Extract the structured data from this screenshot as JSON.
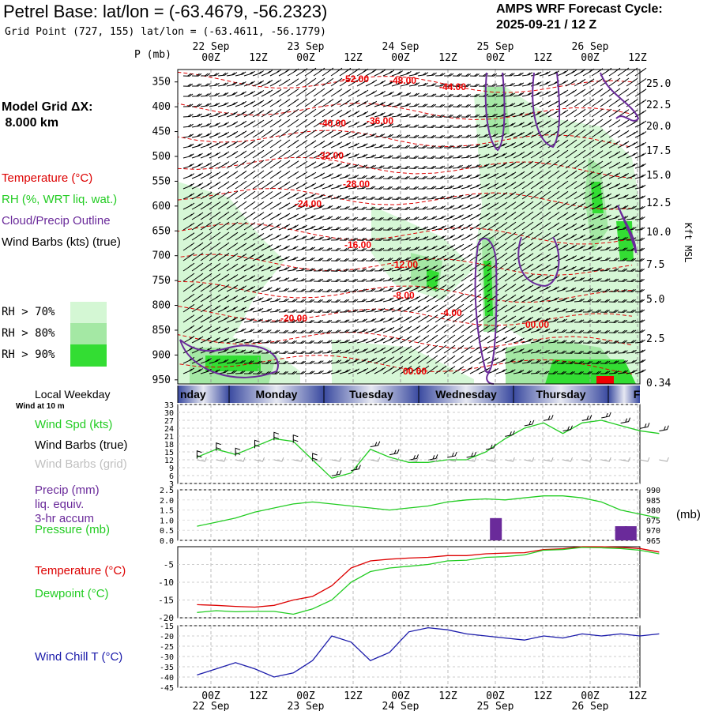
{
  "header": {
    "title": "Petrel Base:  lat/lon = (-63.4679, -56.2323)",
    "grid_point": "Grid Point (727, 155) lat/lon = (-63.4611, -56.1779)",
    "cycle_line1": "AMPS WRF Forecast Cycle:",
    "cycle_line2": "2025-09-21 / 12  Z",
    "model_grid_line1": "Model Grid ΔX:",
    "model_grid_line2": " 8.000 km"
  },
  "legend": {
    "temperature": "Temperature (°C)",
    "rh": "RH (%, WRT liq. wat.)",
    "cloud": "Cloud/Precip Outline",
    "wind_barbs": "Wind Barbs (kts) (true)",
    "rh70": "RH > 70%",
    "rh80": "RH > 80%",
    "rh90": "RH > 90%",
    "rh_colors": [
      "#d4f7d4",
      "#a4e8a4",
      "#33dd33"
    ]
  },
  "colors": {
    "temp": "#dd0000",
    "rh": "#22cc22",
    "cloud": "#6a2a9a",
    "chill": "#1a1aaa",
    "band": "#3a4aa0"
  },
  "time_axis": {
    "hour_labels": [
      "00Z",
      "12Z",
      "00Z",
      "12Z",
      "00Z",
      "12Z",
      "00Z",
      "12Z",
      "00Z",
      "12Z"
    ],
    "date_labels": [
      "22 Sep",
      "23 Sep",
      "24 Sep",
      "25 Sep",
      "26 Sep"
    ]
  },
  "weekdays": [
    "nday",
    "Monday",
    "Tuesday",
    "Wednesday",
    "Thursday",
    "F"
  ],
  "chart_data": [
    {
      "type": "heatmap",
      "title": "Vertical cross-section",
      "ylabel": "P (mb)",
      "ylabel_right": "Kft MSL",
      "pressure_levels": [
        350,
        400,
        450,
        500,
        550,
        600,
        650,
        700,
        750,
        800,
        850,
        900,
        950
      ],
      "height_labels": [
        "25.0",
        "22.5",
        "20.0",
        "17.5",
        "15.0",
        "12.5",
        "10.0",
        "7.5",
        "5.0",
        "2.5",
        "0.34"
      ],
      "temp_contour_labels": [
        "-52.00",
        "-48.00",
        "-44.00",
        "-40.00",
        "-36.00",
        "-32.00",
        "-28.00",
        "-24.00",
        "-20.00",
        "-16.00",
        "-12.00",
        "-8.00",
        "-4.00",
        "00.00",
        "00.00"
      ]
    },
    {
      "type": "line",
      "title": "Wind Spd (kts)",
      "left_title": "Local Weekday",
      "small_title": "Wind at 10 m",
      "labels": {
        "speed": "Wind Spd (kts)",
        "barbs_true": "Wind Barbs (true)",
        "barbs_grid": "Wind Barbs (grid)"
      },
      "y_ticks": [
        "33",
        "30",
        "27",
        "24",
        "21",
        "18",
        "15",
        "12",
        "9",
        "6",
        "3"
      ],
      "ylim": [
        3,
        33
      ],
      "forecast_hour": [
        0,
        6,
        12,
        18,
        24,
        30,
        36,
        42,
        48,
        54,
        60,
        66,
        72,
        78,
        84,
        90,
        96,
        102,
        108,
        114,
        120,
        126,
        132,
        138,
        144
      ],
      "wind_speed": [
        13,
        16,
        14,
        17,
        20,
        19,
        12,
        5,
        7,
        16,
        13,
        11,
        11,
        12,
        12,
        15,
        20,
        24,
        26,
        22,
        26,
        27,
        25,
        23,
        22
      ]
    },
    {
      "type": "bar",
      "labels": {
        "precip": "Precip (mm)",
        "precip2": "liq. equiv.",
        "precip3": "3-hr accum",
        "pressure": "Pressure (mb)",
        "unit": "(mb)"
      },
      "precip_ticks": [
        "2.5",
        "2.0",
        "1.5",
        "1.0",
        "0.5",
        "0.0"
      ],
      "pressure_ticks": [
        "990",
        "985",
        "980",
        "975",
        "970",
        "965"
      ],
      "precip_ylim": [
        0,
        2.5
      ],
      "pressure_ylim": [
        965,
        990
      ],
      "forecast_hour": [
        0,
        6,
        12,
        18,
        24,
        30,
        36,
        42,
        48,
        54,
        60,
        66,
        72,
        78,
        84,
        90,
        96,
        102,
        108,
        114,
        120,
        126,
        132,
        138,
        144
      ],
      "pressure": [
        972,
        974,
        976,
        979,
        981,
        983,
        984,
        983,
        982,
        981,
        980,
        981,
        982,
        984,
        985,
        985.5,
        985,
        986,
        987,
        987,
        986,
        984,
        980,
        978,
        976
      ],
      "precip_bars": [
        {
          "hour": 93,
          "value": 1.1
        },
        {
          "hour": 132,
          "value": 0.7
        },
        {
          "hour": 135,
          "value": 0.7
        }
      ]
    },
    {
      "type": "line",
      "labels": {
        "temp": "Temperature (°C)",
        "dew": "Dewpoint (°C)"
      },
      "y_ticks": [
        "-5",
        "-10",
        "-15",
        "-20"
      ],
      "ylim": [
        -20,
        0
      ],
      "forecast_hour": [
        0,
        6,
        12,
        18,
        24,
        30,
        36,
        42,
        48,
        54,
        60,
        66,
        72,
        78,
        84,
        90,
        96,
        102,
        108,
        114,
        120,
        126,
        132,
        138,
        144
      ],
      "temperature": [
        -16.3,
        -16.5,
        -16.8,
        -17,
        -16.5,
        -15,
        -14,
        -11,
        -6,
        -4,
        -3.5,
        -3.2,
        -3,
        -2.5,
        -2.5,
        -2,
        -1.8,
        -1.7,
        -0.8,
        -0.6,
        0,
        0,
        -0.2,
        -0.5,
        -1.5
      ],
      "dewpoint": [
        -18.5,
        -18,
        -18.3,
        -18.2,
        -18.2,
        -19,
        -17.5,
        -15,
        -10,
        -7,
        -6,
        -5.5,
        -5,
        -4,
        -3.8,
        -3,
        -2.8,
        -2.3,
        -1,
        -0.8,
        -0.2,
        -0.3,
        -0.5,
        -1,
        -2
      ]
    },
    {
      "type": "line",
      "labels": {
        "chill": "Wind Chill T (°C)"
      },
      "y_ticks": [
        "-15",
        "-20",
        "-25",
        "-30",
        "-35",
        "-40",
        "-45"
      ],
      "ylim": [
        -45,
        -15
      ],
      "forecast_hour": [
        0,
        6,
        12,
        18,
        24,
        30,
        36,
        42,
        48,
        54,
        60,
        66,
        72,
        78,
        84,
        90,
        96,
        102,
        108,
        114,
        120,
        126,
        132,
        138,
        144
      ],
      "wind_chill": [
        -39,
        -36,
        -33,
        -36,
        -40,
        -38,
        -32,
        -20,
        -23,
        -32,
        -28,
        -18,
        -16,
        -17,
        -19,
        -20,
        -21,
        -22,
        -20,
        -21,
        -19,
        -20,
        -19,
        -20,
        -19
      ]
    }
  ]
}
